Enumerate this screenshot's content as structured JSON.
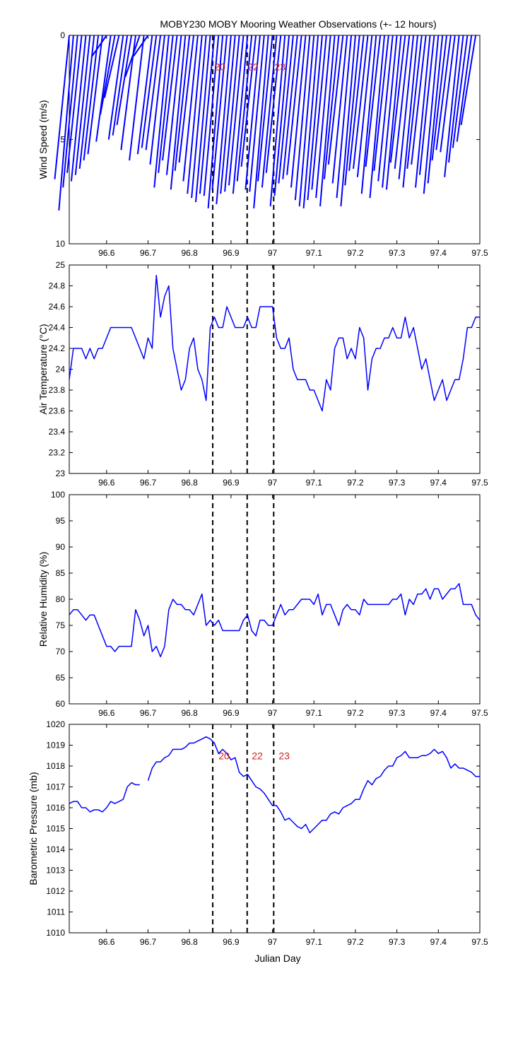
{
  "colors": {
    "series": "#0000ff",
    "marker_label": "#cc2020",
    "marker_line": "#000000",
    "axes": "#000000",
    "background": "#ffffff"
  },
  "chart_data": [
    {
      "type": "line",
      "subtype": "wind-vector-stick-plot",
      "title": "MOBY230 MOBY Mooring Weather Observations (+- 12 hours)",
      "ylabel": "Wind Speed (m/s)",
      "xlabel": "",
      "xlim": [
        96.51,
        97.5
      ],
      "ylim": [
        0,
        10
      ],
      "y_inverted": true,
      "grid": false,
      "xticks": [
        "96.6",
        "96.7",
        "96.8",
        "96.9",
        "97",
        "97.1",
        "97.2",
        "97.3",
        "97.4",
        "97.5"
      ],
      "yticks": [
        "0",
        "5",
        "10"
      ],
      "series": [
        {
          "x": [
            96.51,
            96.52,
            96.53,
            96.54,
            96.55,
            96.56,
            96.57,
            96.58,
            96.59,
            96.6,
            96.61,
            96.62,
            96.63,
            96.64,
            96.65,
            96.66,
            96.67,
            96.68,
            96.69,
            96.7,
            96.71,
            96.72,
            96.73,
            96.74,
            96.75,
            96.76,
            96.77,
            96.78,
            96.79,
            96.8,
            96.81,
            96.82,
            96.83,
            96.84,
            96.85,
            96.86,
            96.87,
            96.88,
            96.89,
            96.9,
            96.91,
            96.92,
            96.93,
            96.94,
            96.95,
            96.96,
            96.97,
            96.98,
            96.99,
            97.0,
            97.01,
            97.02,
            97.03,
            97.04,
            97.05,
            97.06,
            97.07,
            97.08,
            97.09,
            97.1,
            97.11,
            97.12,
            97.13,
            97.14,
            97.15,
            97.16,
            97.17,
            97.18,
            97.19,
            97.2,
            97.21,
            97.22,
            97.23,
            97.24,
            97.25,
            97.26,
            97.27,
            97.28,
            97.29,
            97.3,
            97.31,
            97.32,
            97.33,
            97.34,
            97.35,
            97.36,
            97.37,
            97.38,
            97.39,
            97.4,
            97.41,
            97.42,
            97.43,
            97.44,
            97.45,
            97.46,
            97.47,
            97.48,
            97.49
          ],
          "values": [
            6.9,
            8.4,
            7.3,
            6.6,
            7.0,
            6.7,
            6.4,
            6.0,
            5.7,
            1.0,
            5.1,
            3.8,
            3.0,
            5.0,
            4.8,
            4.3,
            5.5,
            2.0,
            6.0,
            1.0,
            5.7,
            5.4,
            5.5,
            6.2,
            7.3,
            6.6,
            6.0,
            6.7,
            7.4,
            6.5,
            6.1,
            7.0,
            7.6,
            7.8,
            8.0,
            7.6,
            7.7,
            8.3,
            7.4,
            8.1,
            7.6,
            7.5,
            7.2,
            7.6,
            7.0,
            6.3,
            7.4,
            7.5,
            8.3,
            7.0,
            7.3,
            6.6,
            8.2,
            7.7,
            7.1,
            6.9,
            6.7,
            7.3,
            7.9,
            8.2,
            8.3,
            7.9,
            7.4,
            7.8,
            8.2,
            6.9,
            6.2,
            7.1,
            7.8,
            8.2,
            7.2,
            6.5,
            6.4,
            6.8,
            7.6,
            6.3,
            7.8,
            6.5,
            7.0,
            7.3,
            7.4,
            6.1,
            6.4,
            6.9,
            7.3,
            6.4,
            6.2,
            7.3,
            6.7,
            7.6,
            7.1,
            6.0,
            5.5,
            5.6,
            6.8,
            6.1,
            5.4,
            5.1,
            4.3
          ]
        }
      ],
      "annotations": [
        {
          "text": "20",
          "x": 96.86,
          "y": 1.5
        },
        {
          "text": "22",
          "x": 96.94,
          "y": 1.5
        },
        {
          "text": "23",
          "x": 97.005,
          "y": 1.5
        }
      ]
    },
    {
      "type": "line",
      "ylabel": "Air Temperature (°C)",
      "xlabel": "",
      "xlim": [
        96.51,
        97.5
      ],
      "ylim": [
        23,
        25
      ],
      "grid": false,
      "xticks": [
        "96.6",
        "96.7",
        "96.8",
        "96.9",
        "97",
        "97.1",
        "97.2",
        "97.3",
        "97.4",
        "97.5"
      ],
      "yticks": [
        "23",
        "23.2",
        "23.4",
        "23.6",
        "23.8",
        "24",
        "24.2",
        "24.4",
        "24.6",
        "24.8",
        "25"
      ],
      "series": [
        {
          "x": [
            96.51,
            96.52,
            96.53,
            96.54,
            96.55,
            96.56,
            96.57,
            96.58,
            96.59,
            96.6,
            96.61,
            96.62,
            96.64,
            96.66,
            96.69,
            96.7,
            96.71,
            96.72,
            96.73,
            96.74,
            96.75,
            96.76,
            96.77,
            96.78,
            96.79,
            96.8,
            96.81,
            96.82,
            96.83,
            96.84,
            96.85,
            96.86,
            96.87,
            96.88,
            96.89,
            96.9,
            96.91,
            96.92,
            96.93,
            96.94,
            96.95,
            96.96,
            96.97,
            96.98,
            96.99,
            97.0,
            97.01,
            97.02,
            97.03,
            97.04,
            97.05,
            97.06,
            97.07,
            97.08,
            97.09,
            97.1,
            97.11,
            97.12,
            97.13,
            97.14,
            97.15,
            97.16,
            97.17,
            97.18,
            97.19,
            97.2,
            97.21,
            97.22,
            97.23,
            97.24,
            97.25,
            97.26,
            97.27,
            97.28,
            97.29,
            97.3,
            97.31,
            97.32,
            97.33,
            97.34,
            97.35,
            97.36,
            97.37,
            97.38,
            97.39,
            97.4,
            97.41,
            97.42,
            97.43,
            97.44,
            97.45,
            97.46,
            97.47,
            97.48,
            97.49,
            97.5
          ],
          "values": [
            23.9,
            24.2,
            24.2,
            24.2,
            24.1,
            24.2,
            24.1,
            24.2,
            24.2,
            24.3,
            24.4,
            24.4,
            24.4,
            24.4,
            24.1,
            24.3,
            24.2,
            24.9,
            24.5,
            24.7,
            24.8,
            24.2,
            24.0,
            23.8,
            23.9,
            24.2,
            24.3,
            24.0,
            23.9,
            23.7,
            24.4,
            24.5,
            24.4,
            24.4,
            24.6,
            24.5,
            24.4,
            24.4,
            24.4,
            24.5,
            24.4,
            24.4,
            24.6,
            24.6,
            24.6,
            24.6,
            24.3,
            24.2,
            24.2,
            24.3,
            24.0,
            23.9,
            23.9,
            23.9,
            23.8,
            23.8,
            23.7,
            23.6,
            23.9,
            23.8,
            24.2,
            24.3,
            24.3,
            24.1,
            24.2,
            24.1,
            24.4,
            24.3,
            23.8,
            24.1,
            24.2,
            24.2,
            24.3,
            24.3,
            24.4,
            24.3,
            24.3,
            24.5,
            24.3,
            24.4,
            24.2,
            24.0,
            24.1,
            23.9,
            23.7,
            23.8,
            23.9,
            23.7,
            23.8,
            23.9,
            23.9,
            24.1,
            24.4,
            24.4,
            24.5,
            24.5
          ]
        }
      ]
    },
    {
      "type": "line",
      "ylabel": "Relative Humidity (%)",
      "xlabel": "",
      "xlim": [
        96.51,
        97.5
      ],
      "ylim": [
        60,
        100
      ],
      "grid": false,
      "xticks": [
        "96.6",
        "96.7",
        "96.8",
        "96.9",
        "97",
        "97.1",
        "97.2",
        "97.3",
        "97.4",
        "97.5"
      ],
      "yticks": [
        "60",
        "65",
        "70",
        "75",
        "80",
        "85",
        "90",
        "95",
        "100"
      ],
      "series": [
        {
          "x": [
            96.51,
            96.52,
            96.53,
            96.54,
            96.55,
            96.56,
            96.57,
            96.58,
            96.59,
            96.6,
            96.61,
            96.62,
            96.63,
            96.64,
            96.65,
            96.66,
            96.67,
            96.68,
            96.69,
            96.7,
            96.71,
            96.72,
            96.73,
            96.74,
            96.75,
            96.76,
            96.77,
            96.78,
            96.79,
            96.8,
            96.81,
            96.82,
            96.83,
            96.84,
            96.85,
            96.86,
            96.87,
            96.88,
            96.89,
            96.9,
            96.91,
            96.92,
            96.93,
            96.94,
            96.95,
            96.96,
            96.97,
            96.98,
            96.99,
            97.0,
            97.01,
            97.02,
            97.03,
            97.04,
            97.05,
            97.06,
            97.07,
            97.08,
            97.09,
            97.1,
            97.11,
            97.12,
            97.13,
            97.14,
            97.15,
            97.16,
            97.17,
            97.18,
            97.19,
            97.2,
            97.21,
            97.22,
            97.23,
            97.24,
            97.25,
            97.26,
            97.27,
            97.28,
            97.29,
            97.3,
            97.31,
            97.32,
            97.33,
            97.34,
            97.35,
            97.36,
            97.37,
            97.38,
            97.39,
            97.4,
            97.41,
            97.42,
            97.43,
            97.44,
            97.45,
            97.46,
            97.47,
            97.48,
            97.49,
            97.5
          ],
          "values": [
            77,
            78,
            78,
            77,
            76,
            77,
            77,
            75,
            73,
            71,
            71,
            70,
            71,
            71,
            71,
            71,
            78,
            76,
            73,
            75,
            70,
            71,
            69,
            71,
            78,
            80,
            79,
            79,
            78,
            78,
            77,
            79,
            81,
            75,
            76,
            75,
            76,
            74,
            74,
            74,
            74,
            74,
            76,
            77,
            74,
            73,
            76,
            76,
            75,
            75,
            77,
            79,
            77,
            78,
            78,
            79,
            80,
            80,
            80,
            79,
            81,
            77,
            79,
            79,
            77,
            75,
            78,
            79,
            78,
            78,
            77,
            80,
            79,
            79,
            79,
            79,
            79,
            79,
            80,
            80,
            81,
            77,
            80,
            79,
            81,
            81,
            82,
            80,
            82,
            82,
            80,
            81,
            82,
            82,
            83,
            79,
            79,
            79,
            77,
            76
          ]
        }
      ]
    },
    {
      "type": "line",
      "ylabel": "Barometric Pressure (mb)",
      "xlabel": "Julian Day",
      "xlim": [
        96.51,
        97.5
      ],
      "ylim": [
        1010,
        1020
      ],
      "grid": false,
      "xticks": [
        "96.6",
        "96.7",
        "96.8",
        "96.9",
        "97",
        "97.1",
        "97.2",
        "97.3",
        "97.4",
        "97.5"
      ],
      "yticks": [
        "1010",
        "1011",
        "1012",
        "1013",
        "1014",
        "1015",
        "1016",
        "1017",
        "1018",
        "1019",
        "1020"
      ],
      "series": [
        {
          "x": [
            96.51,
            96.52,
            96.53,
            96.54,
            96.55,
            96.56,
            96.57,
            96.58,
            96.59,
            96.6,
            96.61,
            96.62,
            96.63,
            96.64,
            96.65,
            96.66,
            96.67,
            96.68
          ],
          "values": [
            1016.2,
            1016.3,
            1016.3,
            1016.0,
            1016.0,
            1015.8,
            1015.9,
            1015.9,
            1015.8,
            1016.0,
            1016.3,
            1016.2,
            1016.3,
            1016.4,
            1017.0,
            1017.2,
            1017.1,
            1017.1
          ]
        },
        {
          "x": [
            96.7,
            96.71,
            96.72,
            96.73,
            96.74,
            96.75,
            96.76,
            96.77,
            96.78,
            96.79,
            96.8,
            96.81,
            96.82,
            96.83,
            96.84,
            96.85,
            96.86,
            96.87,
            96.88,
            96.89,
            96.9,
            96.91,
            96.92,
            96.93,
            96.94,
            96.95,
            96.96,
            96.97,
            96.98,
            96.99,
            97.0,
            97.01,
            97.02,
            97.03,
            97.04,
            97.05,
            97.06,
            97.07,
            97.08,
            97.09,
            97.1,
            97.11,
            97.12,
            97.13,
            97.14,
            97.15,
            97.16,
            97.17,
            97.18,
            97.19,
            97.2,
            97.21,
            97.22,
            97.23,
            97.24,
            97.25,
            97.26,
            97.27,
            97.28,
            97.29,
            97.3,
            97.31,
            97.32,
            97.33,
            97.34,
            97.35,
            97.36,
            97.37,
            97.38,
            97.39,
            97.4,
            97.41,
            97.42,
            97.43,
            97.44,
            97.45,
            97.46,
            97.47,
            97.48,
            97.49,
            97.5
          ],
          "values": [
            1017.3,
            1017.9,
            1018.2,
            1018.2,
            1018.4,
            1018.5,
            1018.8,
            1018.8,
            1018.8,
            1018.9,
            1019.1,
            1019.1,
            1019.2,
            1019.3,
            1019.4,
            1019.3,
            1019.1,
            1018.6,
            1018.8,
            1018.6,
            1018.3,
            1018.4,
            1017.7,
            1017.5,
            1017.6,
            1017.3,
            1017.0,
            1016.9,
            1016.7,
            1016.4,
            1016.1,
            1016.1,
            1015.8,
            1015.4,
            1015.5,
            1015.3,
            1015.1,
            1015.0,
            1015.2,
            1014.8,
            1015.0,
            1015.2,
            1015.4,
            1015.4,
            1015.7,
            1015.8,
            1015.7,
            1016.0,
            1016.1,
            1016.2,
            1016.4,
            1016.4,
            1016.9,
            1017.3,
            1017.1,
            1017.4,
            1017.5,
            1017.8,
            1018.0,
            1018.0,
            1018.4,
            1018.5,
            1018.7,
            1018.4,
            1018.4,
            1018.4,
            1018.5,
            1018.5,
            1018.6,
            1018.8,
            1018.6,
            1018.7,
            1018.4,
            1017.9,
            1018.1,
            1017.9,
            1017.9,
            1017.8,
            1017.7,
            1017.5,
            1017.5
          ]
        }
      ],
      "annotations": [
        {
          "text": "20",
          "x": 96.87,
          "y": 1018.5
        },
        {
          "text": "22",
          "x": 96.95,
          "y": 1018.5
        },
        {
          "text": "23",
          "x": 97.015,
          "y": 1018.5
        }
      ]
    }
  ],
  "markers": {
    "x": [
      96.856,
      96.939,
      97.003
    ]
  }
}
